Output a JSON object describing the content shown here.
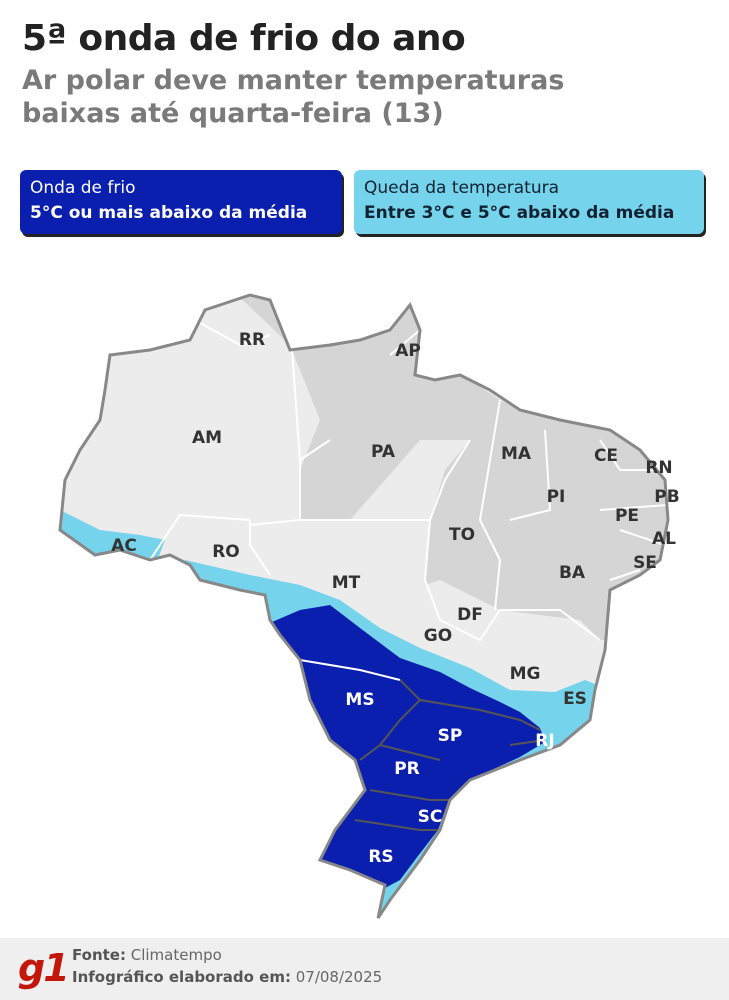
{
  "header": {
    "title": "5ª onda de frio do ano",
    "subtitle": "Ar polar deve manter temperaturas baixas até quarta-feira (13)"
  },
  "legend": [
    {
      "label": "Onda de frio",
      "description": "5°C ou mais abaixo da média",
      "color": "#0b1fae"
    },
    {
      "label": "Queda da temperatura",
      "description": "Entre 3°C e 5°C abaixo da média",
      "color": "#76d3ec"
    }
  ],
  "map": {
    "states": [
      "RR",
      "AP",
      "AM",
      "PA",
      "MA",
      "CE",
      "RN",
      "PB",
      "PI",
      "PE",
      "AL",
      "SE",
      "TO",
      "AC",
      "RO",
      "MT",
      "BA",
      "DF",
      "GO",
      "MG",
      "MS",
      "ES",
      "SP",
      "RJ",
      "PR",
      "SC",
      "RS"
    ]
  },
  "footer": {
    "logo": "g1",
    "source_label": "Fonte:",
    "source": "Climatempo",
    "date_label": "Infográfico elaborado em:",
    "date": "07/08/2025"
  }
}
